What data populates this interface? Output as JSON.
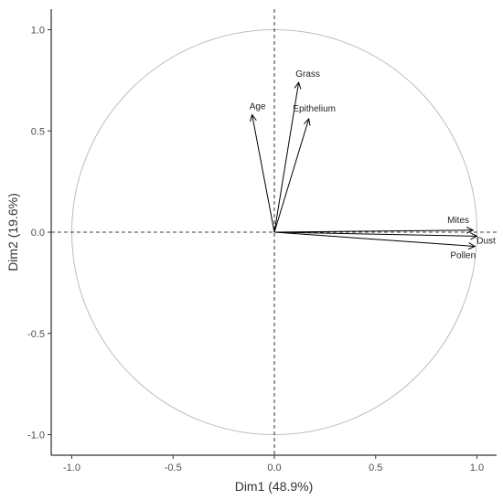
{
  "chart_data": {
    "type": "scatter",
    "subtype": "pca-variable-correlation-circle",
    "xlabel": "Dim1 (48.9%)",
    "ylabel": "Dim2 (19.6%)",
    "xlim": [
      -1.0,
      1.0
    ],
    "ylim": [
      -1.0,
      1.0
    ],
    "x_ticks": [
      -1.0,
      -0.5,
      0.0,
      0.5,
      1.0
    ],
    "x_tick_labels": [
      "-1.0",
      "-0.5",
      "0.0",
      "0.5",
      "1.0"
    ],
    "y_ticks": [
      -1.0,
      -0.5,
      0.0,
      0.5,
      1.0
    ],
    "y_tick_labels": [
      "-1.0",
      "-0.5",
      "0.0",
      "0.5",
      "1.0"
    ],
    "grid": false,
    "unit_circle": true,
    "reference_lines": {
      "x": 0,
      "y": 0,
      "style": "dashed"
    },
    "variables": [
      {
        "name": "Age",
        "x": -0.11,
        "y": 0.58
      },
      {
        "name": "Grass",
        "x": 0.12,
        "y": 0.74
      },
      {
        "name": "Epithelium",
        "x": 0.17,
        "y": 0.56
      },
      {
        "name": "Mites",
        "x": 0.98,
        "y": 0.01
      },
      {
        "name": "Dust",
        "x": 1.0,
        "y": -0.02
      },
      {
        "name": "Pollen",
        "x": 0.99,
        "y": -0.07
      }
    ],
    "colors": {
      "arrows": "#000000",
      "circle": "#bdbdbd",
      "axes": "#000000"
    }
  }
}
